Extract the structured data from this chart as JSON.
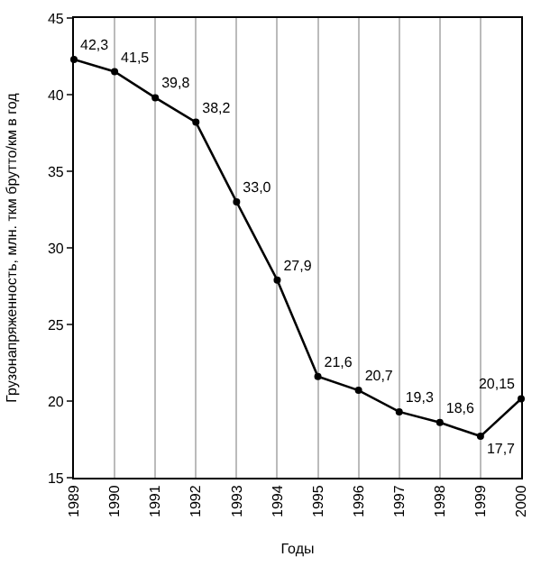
{
  "chart_data": {
    "type": "line",
    "xlabel": "Годы",
    "ylabel": "Грузонапряженность, млн. ткм брутто/км в год",
    "categories": [
      "1989",
      "1990",
      "1991",
      "1992",
      "1993",
      "1994",
      "1995",
      "1996",
      "1997",
      "1998",
      "1999",
      "2000"
    ],
    "values": [
      42.3,
      41.5,
      39.8,
      38.2,
      33.0,
      27.9,
      21.6,
      20.7,
      19.3,
      18.6,
      17.7,
      20.15
    ],
    "value_labels": [
      "42,3",
      "41,5",
      "39,8",
      "38,2",
      "33,0",
      "27,9",
      "21,6",
      "20,7",
      "19,3",
      "18,6",
      "17,7",
      "20,15"
    ],
    "color": "#000000",
    "marker": "circle",
    "line_style": "solid",
    "ylim": [
      15,
      45
    ],
    "yticks": [
      15,
      20,
      25,
      30,
      35,
      40,
      45
    ],
    "grid": "x",
    "legend": false
  }
}
